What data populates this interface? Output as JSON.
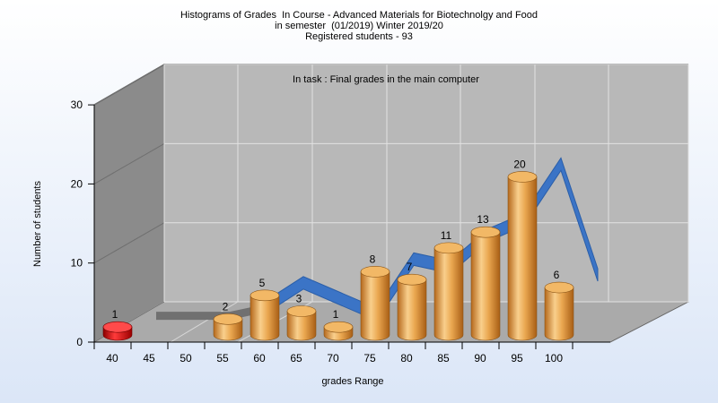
{
  "chart_data": {
    "type": "bar",
    "title_lines": [
      "Histograms of Grades  In Course - Advanced Materials for Biotechnolgy and Food",
      "in semester  (01/2019) Winter 2019/20",
      "Registered students - 93"
    ],
    "subtitle": "In task : Final grades in the main computer",
    "xlabel": "grades Range",
    "ylabel": "Number of students",
    "x_tick_labels": [
      "40",
      "45",
      "50",
      "55",
      "60",
      "65",
      "70",
      "75",
      "80",
      "85",
      "90",
      "95",
      "100"
    ],
    "y_ticks": [
      0,
      10,
      20,
      30
    ],
    "ylim": [
      0,
      30
    ],
    "bars": [
      {
        "range_start": 40,
        "value": 1,
        "color": "#e00000"
      },
      {
        "range_start": 55,
        "value": 2,
        "color": "#e8a040"
      },
      {
        "range_start": 60,
        "value": 5,
        "color": "#e8a040"
      },
      {
        "range_start": 65,
        "value": 3,
        "color": "#e8a040"
      },
      {
        "range_start": 70,
        "value": 1,
        "color": "#e8a040"
      },
      {
        "range_start": 75,
        "value": 8,
        "color": "#e8a040"
      },
      {
        "range_start": 80,
        "value": 7,
        "color": "#e8a040"
      },
      {
        "range_start": 85,
        "value": 11,
        "color": "#e8a040"
      },
      {
        "range_start": 90,
        "value": 13,
        "color": "#e8a040"
      },
      {
        "range_start": 95,
        "value": 20,
        "color": "#e8a040"
      },
      {
        "range_start": 100,
        "value": 6,
        "color": "#e8a040"
      }
    ],
    "trend_line": {
      "x": [
        40,
        45,
        50,
        55,
        60,
        65,
        70,
        75,
        80,
        85,
        90,
        95,
        100
      ],
      "y": [
        1,
        1,
        1,
        2,
        5,
        3,
        1,
        8,
        7,
        11,
        13,
        20,
        6
      ],
      "color_flat": "#707070",
      "color": "#3b74c6"
    },
    "grid": true,
    "style": "3d"
  }
}
